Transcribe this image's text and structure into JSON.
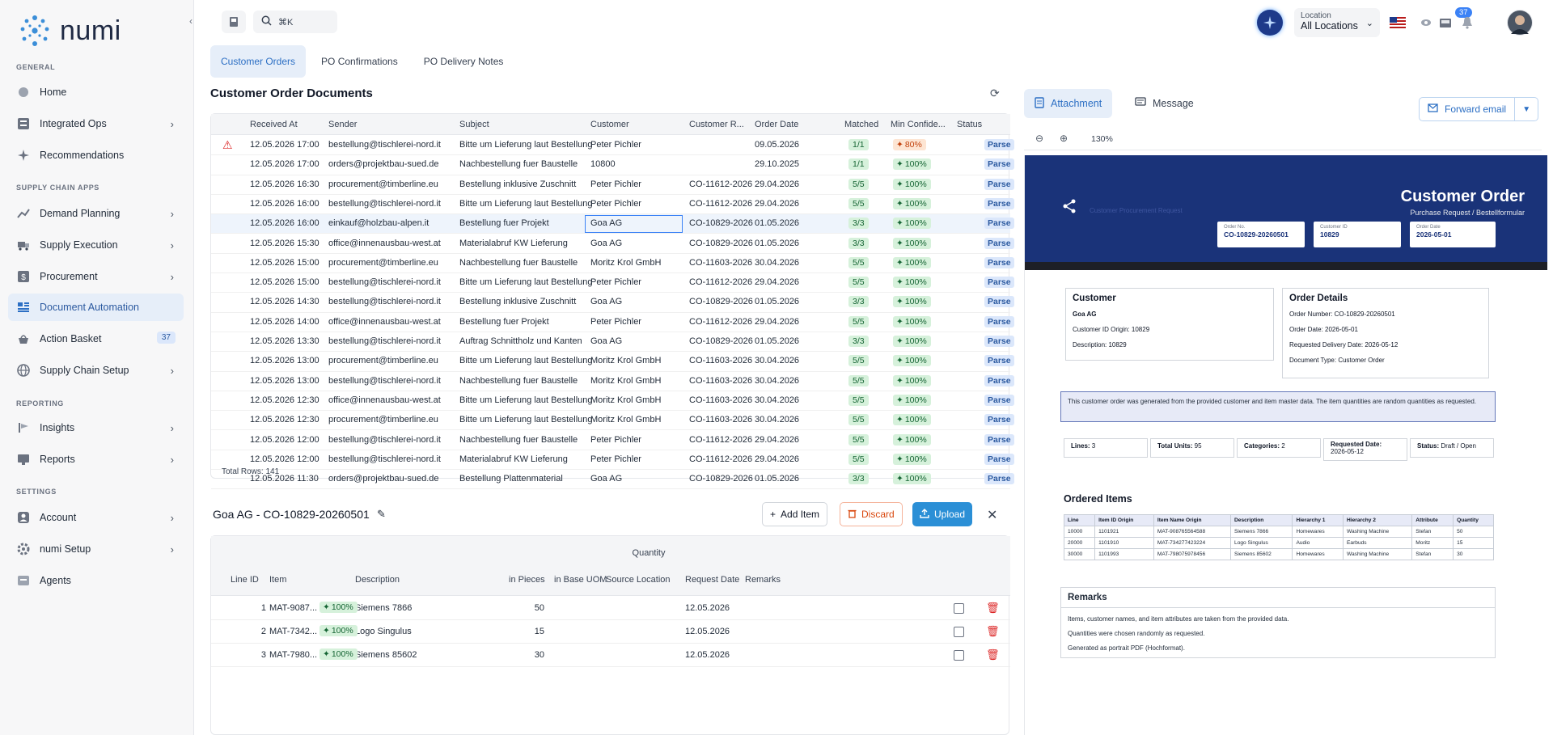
{
  "app": {
    "name": "numi"
  },
  "sidebar": {
    "collapse_icon": "chevron-left-icon",
    "sections": {
      "general": "GENERAL",
      "supply_chain_apps": "SUPPLY CHAIN APPS",
      "reporting": "REPORTING",
      "settings": "SETTINGS"
    },
    "items": [
      {
        "label": "Home",
        "icon": "home-icon"
      },
      {
        "label": "Integrated Ops",
        "icon": "integrated-ops-icon"
      },
      {
        "label": "Recommendations",
        "icon": "sparkle-icon"
      },
      {
        "label": "Demand Planning",
        "icon": "chart-icon"
      },
      {
        "label": "Supply Execution",
        "icon": "truck-icon"
      },
      {
        "label": "Procurement",
        "icon": "dollar-icon"
      },
      {
        "label": "Document Automation",
        "icon": "document-icon"
      },
      {
        "label": "Action Basket",
        "icon": "basket-icon",
        "badge": "37"
      },
      {
        "label": "Supply Chain Setup",
        "icon": "globe-icon"
      },
      {
        "label": "Insights",
        "icon": "insights-icon"
      },
      {
        "label": "Reports",
        "icon": "reports-icon"
      },
      {
        "label": "Account",
        "icon": "account-icon"
      },
      {
        "label": "numi Setup",
        "icon": "settings-icon"
      },
      {
        "label": "Agents",
        "icon": "agents-icon"
      }
    ]
  },
  "topbar": {
    "search_shortcut": "⌘K",
    "location_label": "Location",
    "location_value": "All Locations",
    "notification_count": "37"
  },
  "tabs": [
    "Customer Orders",
    "PO Confirmations",
    "PO Delivery Notes"
  ],
  "orders": {
    "title": "Customer Order Documents",
    "columns": [
      "Received At",
      "Sender",
      "Subject",
      "Customer",
      "Customer R...",
      "Order Date",
      "Matched",
      "Min Confide...",
      "Status"
    ],
    "rows": [
      {
        "received": "12.05.2026 17:00",
        "sender": "bestellung@tischlerei-nord.it",
        "subject": "Bitte um Lieferung laut Bestellung",
        "customer": "Peter Pichler",
        "ref": "",
        "date": "09.05.2026",
        "matched": "1/1",
        "conf": "80%",
        "status": "Parse"
      },
      {
        "received": "12.05.2026 17:00",
        "sender": "orders@projektbau-sued.de",
        "subject": "Nachbestellung fuer Baustelle",
        "customer": "10800",
        "ref": "",
        "date": "29.10.2025",
        "matched": "1/1",
        "conf": "100%",
        "status": "Parse"
      },
      {
        "received": "12.05.2026 16:30",
        "sender": "procurement@timberline.eu",
        "subject": "Bestellung inklusive Zuschnitt",
        "customer": "Peter Pichler",
        "ref": "CO-11612-2026",
        "date": "29.04.2026",
        "matched": "5/5",
        "conf": "100%",
        "status": "Parse"
      },
      {
        "received": "12.05.2026 16:00",
        "sender": "bestellung@tischlerei-nord.it",
        "subject": "Bitte um Lieferung laut Bestellung",
        "customer": "Peter Pichler",
        "ref": "CO-11612-2026",
        "date": "29.04.2026",
        "matched": "5/5",
        "conf": "100%",
        "status": "Parse"
      },
      {
        "received": "12.05.2026 16:00",
        "sender": "einkauf@holzbau-alpen.it",
        "subject": "Bestellung fuer Projekt",
        "customer": "Goa AG",
        "ref": "CO-10829-2026",
        "date": "01.05.2026",
        "matched": "3/3",
        "conf": "100%",
        "status": "Parse"
      },
      {
        "received": "12.05.2026 15:30",
        "sender": "office@innenausbau-west.at",
        "subject": "Materialabruf KW Lieferung",
        "customer": "Goa AG",
        "ref": "CO-10829-2026",
        "date": "01.05.2026",
        "matched": "3/3",
        "conf": "100%",
        "status": "Parse"
      },
      {
        "received": "12.05.2026 15:00",
        "sender": "procurement@timberline.eu",
        "subject": "Nachbestellung fuer Baustelle",
        "customer": "Moritz Krol GmbH",
        "ref": "CO-11603-2026",
        "date": "30.04.2026",
        "matched": "5/5",
        "conf": "100%",
        "status": "Parse"
      },
      {
        "received": "12.05.2026 15:00",
        "sender": "bestellung@tischlerei-nord.it",
        "subject": "Bitte um Lieferung laut Bestellung",
        "customer": "Peter Pichler",
        "ref": "CO-11612-2026",
        "date": "29.04.2026",
        "matched": "5/5",
        "conf": "100%",
        "status": "Parse"
      },
      {
        "received": "12.05.2026 14:30",
        "sender": "bestellung@tischlerei-nord.it",
        "subject": "Bestellung inklusive Zuschnitt",
        "customer": "Goa AG",
        "ref": "CO-10829-2026",
        "date": "01.05.2026",
        "matched": "3/3",
        "conf": "100%",
        "status": "Parse"
      },
      {
        "received": "12.05.2026 14:00",
        "sender": "office@innenausbau-west.at",
        "subject": "Bestellung fuer Projekt",
        "customer": "Peter Pichler",
        "ref": "CO-11612-2026",
        "date": "29.04.2026",
        "matched": "5/5",
        "conf": "100%",
        "status": "Parse"
      },
      {
        "received": "12.05.2026 13:30",
        "sender": "bestellung@tischlerei-nord.it",
        "subject": "Auftrag Schnittholz und Kanten",
        "customer": "Goa AG",
        "ref": "CO-10829-2026",
        "date": "01.05.2026",
        "matched": "3/3",
        "conf": "100%",
        "status": "Parse"
      },
      {
        "received": "12.05.2026 13:00",
        "sender": "procurement@timberline.eu",
        "subject": "Bitte um Lieferung laut Bestellung",
        "customer": "Moritz Krol GmbH",
        "ref": "CO-11603-2026",
        "date": "30.04.2026",
        "matched": "5/5",
        "conf": "100%",
        "status": "Parse"
      },
      {
        "received": "12.05.2026 13:00",
        "sender": "bestellung@tischlerei-nord.it",
        "subject": "Nachbestellung fuer Baustelle",
        "customer": "Moritz Krol GmbH",
        "ref": "CO-11603-2026",
        "date": "30.04.2026",
        "matched": "5/5",
        "conf": "100%",
        "status": "Parse"
      },
      {
        "received": "12.05.2026 12:30",
        "sender": "office@innenausbau-west.at",
        "subject": "Bitte um Lieferung laut Bestellung",
        "customer": "Moritz Krol GmbH",
        "ref": "CO-11603-2026",
        "date": "30.04.2026",
        "matched": "5/5",
        "conf": "100%",
        "status": "Parse"
      },
      {
        "received": "12.05.2026 12:30",
        "sender": "procurement@timberline.eu",
        "subject": "Bitte um Lieferung laut Bestellung",
        "customer": "Moritz Krol GmbH",
        "ref": "CO-11603-2026",
        "date": "30.04.2026",
        "matched": "5/5",
        "conf": "100%",
        "status": "Parse"
      },
      {
        "received": "12.05.2026 12:00",
        "sender": "bestellung@tischlerei-nord.it",
        "subject": "Nachbestellung fuer Baustelle",
        "customer": "Peter Pichler",
        "ref": "CO-11612-2026",
        "date": "29.04.2026",
        "matched": "5/5",
        "conf": "100%",
        "status": "Parse"
      },
      {
        "received": "12.05.2026 12:00",
        "sender": "bestellung@tischlerei-nord.it",
        "subject": "Materialabruf KW Lieferung",
        "customer": "Peter Pichler",
        "ref": "CO-11612-2026",
        "date": "29.04.2026",
        "matched": "5/5",
        "conf": "100%",
        "status": "Parse"
      },
      {
        "received": "12.05.2026 11:30",
        "sender": "orders@projektbau-sued.de",
        "subject": "Bestellung Plattenmaterial",
        "customer": "Goa AG",
        "ref": "CO-10829-2026",
        "date": "01.05.2026",
        "matched": "3/3",
        "conf": "100%",
        "status": "Parse"
      }
    ],
    "total_rows": "Total Rows: 141"
  },
  "detail": {
    "title": "Goa AG - CO-10829-20260501",
    "add_item": "Add Item",
    "discard": "Discard",
    "upload": "Upload",
    "columns": {
      "quantity_group": "Quantity",
      "line_id": "Line ID",
      "item": "Item",
      "description": "Description",
      "in_pieces": "in Pieces",
      "in_base_uom": "in Base UOM",
      "source_location": "Source Location",
      "request_date": "Request Date",
      "remarks": "Remarks"
    },
    "rows": [
      {
        "line": "1",
        "item": "MAT-9087...",
        "conf": "100%",
        "description": "Siemens 7866",
        "pieces": "50",
        "date": "12.05.2026"
      },
      {
        "line": "2",
        "item": "MAT-7342...",
        "conf": "100%",
        "description": "Logo Singulus",
        "pieces": "15",
        "date": "12.05.2026"
      },
      {
        "line": "3",
        "item": "MAT-7980...",
        "conf": "100%",
        "description": "Siemens 85602",
        "pieces": "30",
        "date": "12.05.2026"
      }
    ]
  },
  "right": {
    "attachment_tab": "Attachment",
    "message_tab": "Message",
    "forward_email": "Forward email",
    "zoom": "130%"
  },
  "pdf": {
    "title": "Customer Order",
    "subtitle": "Purchase Request / Bestellformular",
    "faint_text": "Customer Procurement Request",
    "fields": [
      {
        "label": "Order No.",
        "value": "CO-10829-20260501"
      },
      {
        "label": "Customer ID",
        "value": "10829"
      },
      {
        "label": "Order Date",
        "value": "2026-05-01"
      }
    ],
    "customer_box": {
      "title": "Customer",
      "name": "Goa AG",
      "origin": "Customer ID Origin: 10829",
      "description": "Description: 10829"
    },
    "details_box": {
      "title": "Order Details",
      "number": "Order Number: CO-10829-20260501",
      "date": "Order Date: 2026-05-01",
      "delivery": "Requested Delivery Date: 2026-05-12",
      "type": "Document Type: Customer Order"
    },
    "note": "This customer order was generated from the provided customer and item master data. The item quantities are random quantities as requested.",
    "summary": {
      "lines_label": "Lines:",
      "lines": "3",
      "units_label": "Total Units:",
      "units": "95",
      "categories_label": "Categories:",
      "categories": "2",
      "requested_label": "Requested Date:",
      "requested": "2026-05-12",
      "status_label": "Status:",
      "status": "Draft / Open"
    },
    "ordered_items_title": "Ordered Items",
    "ordered_items_columns": [
      "Line",
      "Item ID Origin",
      "Item Name Origin",
      "Description",
      "Hierarchy 1",
      "Hierarchy 2",
      "Attribute",
      "Quantity"
    ],
    "ordered_items": [
      [
        "10000",
        "1101921",
        "MAT-908765564588",
        "Siemens 7866",
        "Homewares",
        "Washing Machine",
        "Stefan",
        "50"
      ],
      [
        "20000",
        "1101910",
        "MAT-734277423224",
        "Logo Singulus",
        "Audio",
        "Earbuds",
        "Moritz",
        "15"
      ],
      [
        "30000",
        "1101993",
        "MAT-798075978456",
        "Siemens 85602",
        "Homewares",
        "Washing Machine",
        "Stefan",
        "30"
      ]
    ],
    "remarks_title": "Remarks",
    "remarks": [
      "Items, customer names, and item attributes are taken from the provided data.",
      "Quantities were chosen randomly as requested.",
      "Generated as portrait PDF (Hochformat)."
    ]
  },
  "colors": {
    "accent": "#2c6fc4",
    "active_bg": "#e6eef9",
    "banner": "#1a3379",
    "success_bg": "#d6f1db",
    "warning": "#c2410c",
    "danger": "#dc2626",
    "upload": "#2b8fd6"
  }
}
